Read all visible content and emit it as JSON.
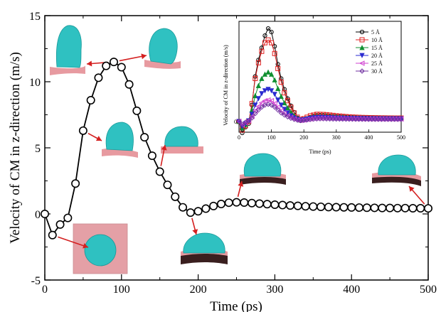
{
  "chart_data": [
    {
      "type": "line",
      "xlabel": "Time (ps)",
      "ylabel": "Velocity of CM in z-direction (m/s)",
      "xlim": [
        0,
        500
      ],
      "ylim": [
        -5,
        15
      ],
      "x_ticks": [
        "0",
        "100",
        "200",
        "300",
        "400",
        "500"
      ],
      "y_ticks": [
        "-5",
        "0",
        "5",
        "10",
        "15"
      ],
      "grid": false,
      "series": [
        {
          "marker": "open-circle",
          "color": "#000000",
          "x": [
            0,
            10,
            20,
            30,
            40,
            50,
            60,
            70,
            80,
            90,
            100,
            110,
            120,
            130,
            140,
            150,
            160,
            170,
            180,
            190,
            200,
            210,
            220,
            230,
            240,
            250,
            260,
            270,
            280,
            290,
            300,
            310,
            320,
            330,
            340,
            350,
            360,
            370,
            380,
            390,
            400,
            410,
            420,
            430,
            440,
            450,
            460,
            470,
            480,
            490,
            500
          ],
          "values": [
            0,
            -1.6,
            -0.8,
            -0.3,
            2.3,
            6.3,
            8.6,
            10.3,
            11.2,
            11.5,
            11.1,
            9.8,
            7.8,
            5.8,
            4.4,
            3.2,
            2.2,
            1.3,
            0.5,
            0.1,
            0.2,
            0.4,
            0.6,
            0.75,
            0.85,
            0.88,
            0.86,
            0.82,
            0.78,
            0.74,
            0.7,
            0.67,
            0.64,
            0.61,
            0.58,
            0.56,
            0.54,
            0.52,
            0.51,
            0.5,
            0.49,
            0.48,
            0.47,
            0.46,
            0.45,
            0.45,
            0.44,
            0.44,
            0.43,
            0.43,
            0.42
          ]
        }
      ]
    },
    {
      "type": "line",
      "xlabel": "Time (ps)",
      "ylabel": "Velocity of CM in z-direction (m/s)",
      "xlim": [
        0,
        500
      ],
      "x_ticks": [
        "0",
        "100",
        "200",
        "300",
        "400",
        "500"
      ],
      "y_ticks": [
        "0"
      ],
      "legend": "top-right",
      "x": [
        0,
        10,
        20,
        30,
        40,
        50,
        60,
        70,
        80,
        90,
        100,
        110,
        120,
        130,
        140,
        150,
        160,
        170,
        180,
        190,
        200,
        210,
        220,
        230,
        240,
        250,
        260,
        270,
        280,
        290,
        300,
        310,
        320,
        330,
        340,
        350,
        360,
        370,
        380,
        390,
        400,
        410,
        420,
        430,
        440,
        450,
        460,
        470,
        480,
        490,
        500
      ],
      "series": [
        {
          "name": "5 Å",
          "color": "#000000",
          "marker": "circle",
          "values": [
            0,
            -1.6,
            -0.8,
            -0.3,
            2.3,
            6.3,
            8.6,
            10.3,
            12.0,
            13.0,
            12.5,
            10.5,
            8.0,
            6.0,
            4.5,
            3.2,
            2.2,
            1.3,
            0.5,
            0.1,
            0.2,
            0.4,
            0.6,
            0.75,
            0.85,
            0.88,
            0.86,
            0.82,
            0.78,
            0.74,
            0.7,
            0.67,
            0.64,
            0.61,
            0.58,
            0.56,
            0.54,
            0.52,
            0.51,
            0.5,
            0.49,
            0.48,
            0.47,
            0.46,
            0.45,
            0.45,
            0.44,
            0.44,
            0.43,
            0.43,
            0.42
          ]
        },
        {
          "name": "10 Å",
          "color": "#e02020",
          "marker": "square",
          "values": [
            0,
            -1.2,
            -0.6,
            0,
            2.5,
            6.0,
            8.2,
            9.8,
            11.0,
            11.4,
            11.0,
            9.5,
            7.4,
            5.5,
            4.0,
            2.9,
            2.0,
            1.2,
            0.6,
            0.3,
            0.4,
            0.6,
            0.8,
            0.9,
            1.0,
            1.0,
            0.98,
            0.95,
            0.9,
            0.85,
            0.8,
            0.76,
            0.72,
            0.68,
            0.65,
            0.62,
            0.6,
            0.58,
            0.56,
            0.55,
            0.54,
            0.53,
            0.52,
            0.51,
            0.5,
            0.5,
            0.49,
            0.49,
            0.48,
            0.48,
            0.48
          ]
        },
        {
          "name": "15 Å",
          "color": "#109030",
          "marker": "triangle-up",
          "values": [
            0,
            -0.9,
            -0.4,
            0.1,
            1.6,
            3.6,
            5.0,
            6.0,
            6.6,
            6.9,
            6.6,
            5.8,
            4.6,
            3.5,
            2.6,
            1.9,
            1.3,
            0.8,
            0.4,
            0.2,
            0.3,
            0.4,
            0.55,
            0.65,
            0.7,
            0.72,
            0.7,
            0.68,
            0.65,
            0.62,
            0.6,
            0.57,
            0.55,
            0.53,
            0.51,
            0.5,
            0.49,
            0.48,
            0.47,
            0.46,
            0.45,
            0.45,
            0.44,
            0.44,
            0.43,
            0.43,
            0.42,
            0.42,
            0.42,
            0.41,
            0.41
          ]
        },
        {
          "name": "20 Å",
          "color": "#2a2ad0",
          "marker": "triangle-down",
          "values": [
            0,
            -0.7,
            -0.3,
            0.1,
            1.0,
            2.3,
            3.2,
            3.9,
            4.3,
            4.5,
            4.3,
            3.8,
            3.0,
            2.3,
            1.7,
            1.2,
            0.8,
            0.5,
            0.3,
            0.2,
            0.25,
            0.35,
            0.45,
            0.52,
            0.56,
            0.58,
            0.57,
            0.55,
            0.53,
            0.51,
            0.49,
            0.47,
            0.46,
            0.45,
            0.44,
            0.43,
            0.42,
            0.42,
            0.41,
            0.41,
            0.4,
            0.4,
            0.4,
            0.39,
            0.39,
            0.39,
            0.38,
            0.38,
            0.38,
            0.38,
            0.38
          ]
        },
        {
          "name": "25 Å",
          "color": "#d040d0",
          "marker": "triangle-left",
          "values": [
            0,
            -0.5,
            -0.2,
            0.1,
            0.7,
            1.5,
            2.1,
            2.6,
            2.9,
            3.0,
            2.9,
            2.5,
            2.0,
            1.5,
            1.1,
            0.8,
            0.55,
            0.35,
            0.2,
            0.15,
            0.2,
            0.28,
            0.36,
            0.42,
            0.45,
            0.46,
            0.46,
            0.45,
            0.44,
            0.43,
            0.42,
            0.41,
            0.4,
            0.39,
            0.38,
            0.38,
            0.37,
            0.37,
            0.36,
            0.36,
            0.36,
            0.35,
            0.35,
            0.35,
            0.35,
            0.34,
            0.34,
            0.34,
            0.34,
            0.34,
            0.34
          ]
        },
        {
          "name": "30 Å",
          "color": "#7030a0",
          "marker": "diamond",
          "values": [
            0,
            -0.4,
            -0.1,
            0.1,
            0.5,
            1.1,
            1.6,
            2.0,
            2.3,
            2.4,
            2.3,
            2.0,
            1.6,
            1.2,
            0.9,
            0.65,
            0.45,
            0.3,
            0.18,
            0.12,
            0.16,
            0.22,
            0.28,
            0.33,
            0.36,
            0.37,
            0.37,
            0.36,
            0.35,
            0.34,
            0.34,
            0.33,
            0.33,
            0.32,
            0.32,
            0.32,
            0.31,
            0.31,
            0.31,
            0.31,
            0.3,
            0.3,
            0.3,
            0.3,
            0.3,
            0.3,
            0.3,
            0.3,
            0.3,
            0.3,
            0.3
          ]
        }
      ]
    }
  ]
}
